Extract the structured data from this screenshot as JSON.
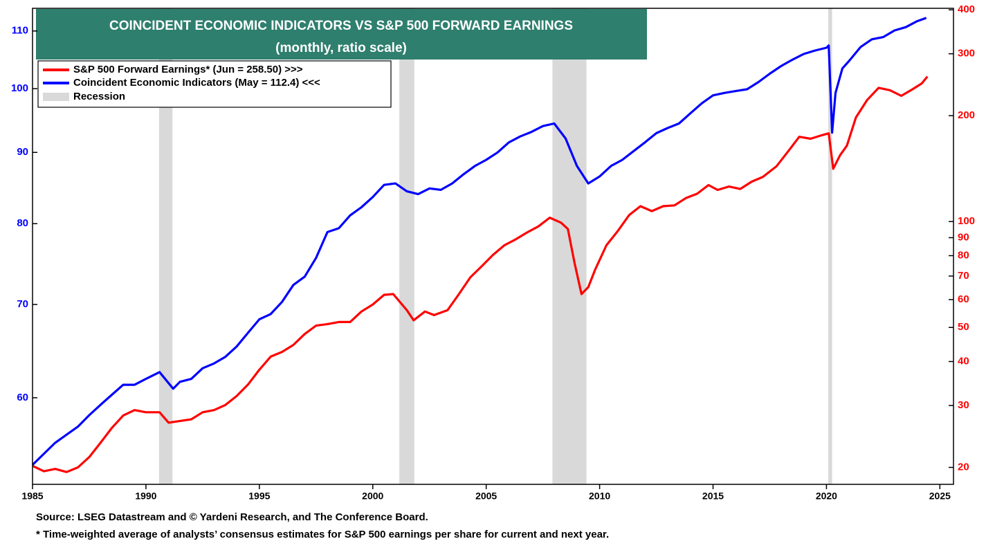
{
  "chart_data": {
    "type": "line",
    "title": "COINCIDENT ECONOMIC  INDICATORS VS S&P 500 FORWARD EARNINGS",
    "subtitle": "(monthly, ratio scale)",
    "notes": [
      "Source: LSEG Datastream and © Yardeni Research, and The Conference Board.",
      "* Time-weighted average of analysts’ consensus estimates for S&P 500 earnings per share for current and next year."
    ],
    "log_scale": true,
    "xlim": [
      1985,
      2025.6
    ],
    "xticks": [
      1985,
      1990,
      1995,
      2000,
      2005,
      2010,
      2015,
      2020,
      2025
    ],
    "ylim": [
      52,
      114.2
    ],
    "yticks": [
      60,
      70,
      80,
      90,
      100,
      110
    ],
    "y_color": "#0000ff",
    "y2lim": [
      17.9,
      404
    ],
    "y2ticks": [
      20,
      30,
      40,
      50,
      60,
      70,
      80,
      90,
      100,
      200,
      300,
      400
    ],
    "y2_color": "#ff0000",
    "recessions": {
      "name": "Recession",
      "color": "#d9d9d9",
      "periods": [
        [
          1990.58,
          1991.17
        ],
        [
          2001.17,
          2001.83
        ],
        [
          2007.92,
          2009.42
        ],
        [
          2020.08,
          2020.25
        ]
      ]
    },
    "series": [
      {
        "name": "S&P 500 Forward Earnings* (Jun = 258.50) >>>",
        "color": "#ff0000",
        "axis": "y2",
        "x": [
          1985.0,
          1985.5,
          1986,
          1986.5,
          1987,
          1987.5,
          1988,
          1988.5,
          1989,
          1989.5,
          1990,
          1990.6,
          1991,
          1991.5,
          1992,
          1992.5,
          1993,
          1993.5,
          1994,
          1994.5,
          1995,
          1995.5,
          1996,
          1996.5,
          1997,
          1997.5,
          1998,
          1998.5,
          1999,
          1999.5,
          2000,
          2000.5,
          2000.9,
          2001.5,
          2001.8,
          2002.3,
          2002.7,
          2003.3,
          2003.8,
          2004.3,
          2004.8,
          2005.3,
          2005.8,
          2006.3,
          2006.8,
          2007.3,
          2007.8,
          2008.3,
          2008.6,
          2008.9,
          2009.2,
          2009.5,
          2009.8,
          2010.3,
          2010.8,
          2011.3,
          2011.8,
          2012.3,
          2012.8,
          2013.3,
          2013.8,
          2014.3,
          2014.8,
          2015.2,
          2015.7,
          2016.2,
          2016.7,
          2017.2,
          2017.8,
          2018.3,
          2018.8,
          2019.3,
          2019.8,
          2020.1,
          2020.3,
          2020.6,
          2020.9,
          2021.3,
          2021.8,
          2022.3,
          2022.8,
          2023.3,
          2023.8,
          2024.2,
          2024.45
        ],
        "values": [
          20.2,
          19.5,
          19.8,
          19.4,
          20,
          21.4,
          23.5,
          25.9,
          28.1,
          29.1,
          28.7,
          28.7,
          26.8,
          27.1,
          27.4,
          28.7,
          29.1,
          30.1,
          31.9,
          34.4,
          37.9,
          41.3,
          42.6,
          44.6,
          47.9,
          50.6,
          51.1,
          51.8,
          51.8,
          55.5,
          58.1,
          61.9,
          62.2,
          56.0,
          52.4,
          55.5,
          54.2,
          56.0,
          62.2,
          69.4,
          74.6,
          80.4,
          85.6,
          89.0,
          93.1,
          96.9,
          102.6,
          99.3,
          95.3,
          76.0,
          62.2,
          65.1,
          72.9,
          85.6,
          94.0,
          104.3,
          110.6,
          107.1,
          110.6,
          111.2,
          116.6,
          120.0,
          127.0,
          123.0,
          125.8,
          123.8,
          129.8,
          134.0,
          143.7,
          158.0,
          174.2,
          172.0,
          176.0,
          178.2,
          141.3,
          154.4,
          164.3,
          197.7,
          221.9,
          240.0,
          236.3,
          227.8,
          237.9,
          247.0,
          258.5
        ]
      },
      {
        "name": "Coincident Economic Indicators (May = 112.4) <<<",
        "color": "#0000ff",
        "x": [
          1985.0,
          1986,
          1987,
          1987.5,
          1988,
          1988.5,
          1989,
          1989.5,
          1990,
          1990.6,
          1991.2,
          1991.5,
          1992,
          1992.5,
          1993,
          1993.5,
          1994,
          1994.5,
          1995,
          1995.5,
          1996,
          1996.5,
          1997,
          1997.5,
          1998,
          1998.5,
          1999,
          1999.5,
          2000,
          2000.5,
          2001,
          2001.5,
          2002,
          2002.5,
          2003,
          2003.5,
          2004,
          2004.5,
          2005,
          2005.5,
          2006,
          2006.5,
          2007,
          2007.5,
          2008,
          2008.5,
          2009,
          2009.5,
          2010,
          2010.5,
          2011,
          2011.5,
          2012,
          2012.5,
          2013,
          2013.5,
          2014,
          2014.5,
          2015,
          2015.5,
          2016,
          2016.5,
          2017,
          2017.5,
          2018,
          2018.5,
          2019,
          2019.5,
          2020.0,
          2020.1,
          2020.25,
          2020.4,
          2020.7,
          2021,
          2021.5,
          2022,
          2022.5,
          2023,
          2023.5,
          2024,
          2024.4
        ],
        "values": [
          53.7,
          55.7,
          57.2,
          58.3,
          59.3,
          60.3,
          61.3,
          61.3,
          61.9,
          62.6,
          60.9,
          61.6,
          61.9,
          63.0,
          63.5,
          64.2,
          65.3,
          66.8,
          68.3,
          68.9,
          70.3,
          72.3,
          73.3,
          75.6,
          78.9,
          79.4,
          81.1,
          82.2,
          83.6,
          85.3,
          85.5,
          84.4,
          84.0,
          84.8,
          84.6,
          85.5,
          86.8,
          88.0,
          88.9,
          90.0,
          91.5,
          92.4,
          93.1,
          94.0,
          94.4,
          92.1,
          88.0,
          85.5,
          86.5,
          88.0,
          88.9,
          90.2,
          91.5,
          92.9,
          93.7,
          94.4,
          96.0,
          97.6,
          98.9,
          99.3,
          99.6,
          99.9,
          101.1,
          102.5,
          103.8,
          104.9,
          105.9,
          106.5,
          107.0,
          107.4,
          93.0,
          99.3,
          103.4,
          104.7,
          107.1,
          108.5,
          108.9,
          110.1,
          110.7,
          111.8,
          112.4
        ]
      }
    ]
  }
}
